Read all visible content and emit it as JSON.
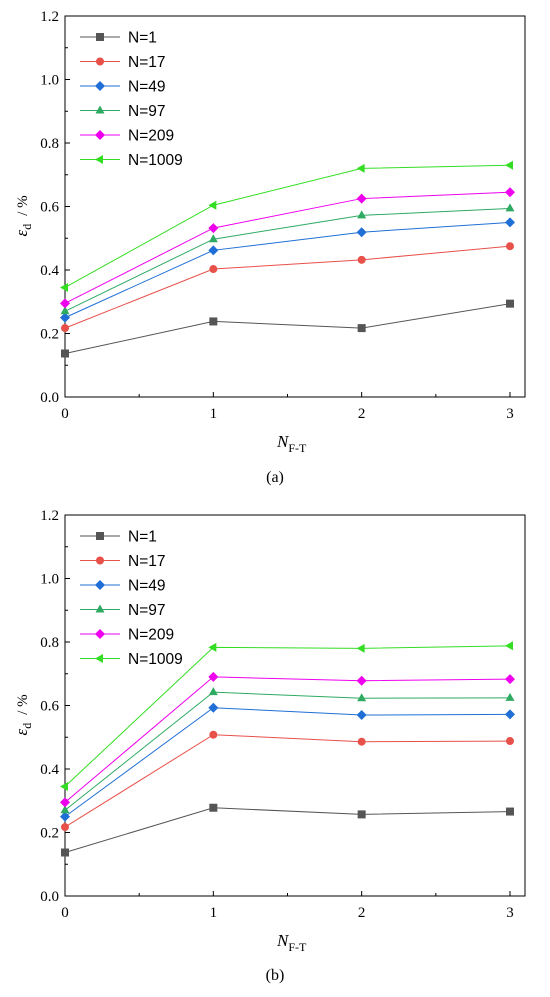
{
  "chart_data": [
    {
      "type": "line",
      "caption": "(a)",
      "xlabel": {
        "main": "N",
        "sub": "F-T"
      },
      "ylabel": {
        "main": "ε",
        "sub": "d",
        "unit": "/ %"
      },
      "x_ticks": [
        "0",
        "1",
        "2",
        "3"
      ],
      "y_ticks": [
        "0.0",
        "0.2",
        "0.4",
        "0.6",
        "0.8",
        "1.0",
        "1.2"
      ],
      "xlim": [
        0,
        3
      ],
      "ylim": [
        0,
        1.2
      ],
      "x": [
        0,
        1,
        2,
        3
      ],
      "legend_position": "top-left",
      "series": [
        {
          "name": "N=1",
          "color": "#555555",
          "marker": "square",
          "values": [
            0.137,
            0.238,
            0.217,
            0.294
          ]
        },
        {
          "name": "N=17",
          "color": "#e8504a",
          "marker": "circle",
          "values": [
            0.217,
            0.403,
            0.432,
            0.475
          ]
        },
        {
          "name": "N=49",
          "color": "#1f6fd6",
          "marker": "diamond",
          "values": [
            0.25,
            0.462,
            0.519,
            0.55
          ]
        },
        {
          "name": "N=97",
          "color": "#2eaa62",
          "marker": "triangle-up",
          "values": [
            0.27,
            0.497,
            0.572,
            0.594
          ]
        },
        {
          "name": "N=209",
          "color": "#ee00ee",
          "marker": "diamond",
          "values": [
            0.295,
            0.532,
            0.625,
            0.645
          ]
        },
        {
          "name": "N=1009",
          "color": "#33dd22",
          "marker": "triangle-left",
          "values": [
            0.345,
            0.604,
            0.72,
            0.73
          ]
        }
      ]
    },
    {
      "type": "line",
      "caption": "(b)",
      "xlabel": {
        "main": "N",
        "sub": "F-T"
      },
      "ylabel": {
        "main": "ε",
        "sub": "d",
        "unit": "/ %"
      },
      "x_ticks": [
        "0",
        "1",
        "2",
        "3"
      ],
      "y_ticks": [
        "0.0",
        "0.2",
        "0.4",
        "0.6",
        "0.8",
        "1.0",
        "1.2"
      ],
      "xlim": [
        0,
        3
      ],
      "ylim": [
        0,
        1.2
      ],
      "x": [
        0,
        1,
        2,
        3
      ],
      "legend_position": "top-left",
      "series": [
        {
          "name": "N=1",
          "color": "#555555",
          "marker": "square",
          "values": [
            0.137,
            0.278,
            0.257,
            0.266
          ]
        },
        {
          "name": "N=17",
          "color": "#e8504a",
          "marker": "circle",
          "values": [
            0.217,
            0.508,
            0.486,
            0.488
          ]
        },
        {
          "name": "N=49",
          "color": "#1f6fd6",
          "marker": "diamond",
          "values": [
            0.25,
            0.593,
            0.57,
            0.572
          ]
        },
        {
          "name": "N=97",
          "color": "#2eaa62",
          "marker": "triangle-up",
          "values": [
            0.27,
            0.642,
            0.623,
            0.624
          ]
        },
        {
          "name": "N=209",
          "color": "#ee00ee",
          "marker": "diamond",
          "values": [
            0.295,
            0.69,
            0.678,
            0.683
          ]
        },
        {
          "name": "N=1009",
          "color": "#33dd22",
          "marker": "triangle-left",
          "values": [
            0.345,
            0.783,
            0.78,
            0.788
          ]
        }
      ]
    }
  ]
}
